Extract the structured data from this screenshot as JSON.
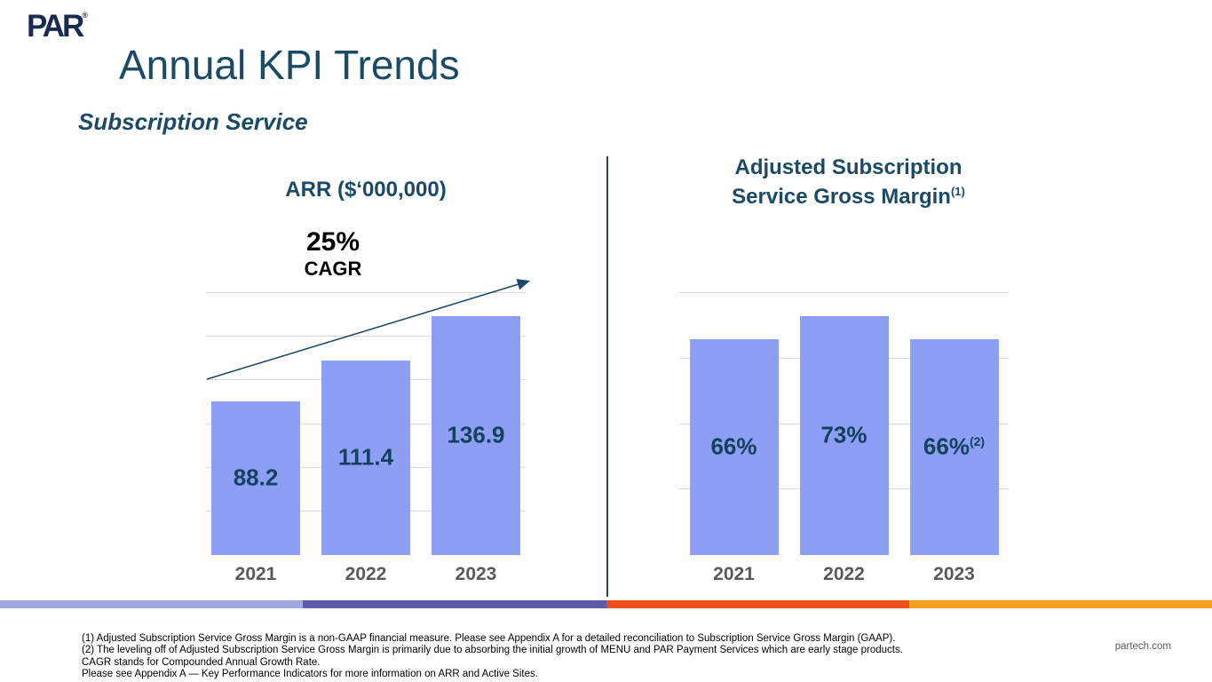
{
  "slide": {
    "logo_text": "PAR",
    "logo_trademark": "®",
    "title": "Annual KPI Trends",
    "subtitle": "Subscription Service",
    "footer_url": "partech.com",
    "footnotes": [
      "(1) Adjusted Subscription Service Gross Margin is a non-GAAP financial measure. Please see Appendix A for a detailed reconciliation to Subscription Service Gross Margin (GAAP).",
      "(2) The leveling off of Adjusted Subscription Service Gross Margin is primarily due to absorbing the initial growth of MENU and PAR Payment Services which are early stage products.",
      "CAGR stands for Compounded Annual Growth Rate.",
      "Please see Appendix A — Key Performance Indicators for more information on ARR and Active Sites."
    ]
  },
  "colors": {
    "bar": "#8D9FF5",
    "navy": "#1A4A66",
    "value_text": "#15405E",
    "axis_text": "#595959",
    "gridline": "#D9D9D9",
    "stripe": [
      "#9FA8E2",
      "#5C5AA8",
      "#E9501E",
      "#F5A01F"
    ]
  },
  "chart_data": [
    {
      "type": "bar",
      "title": "ARR ($‘000,000)",
      "annotation_value": "25%",
      "annotation_label": "CAGR",
      "categories": [
        "2021",
        "2022",
        "2023"
      ],
      "values": [
        88.2,
        111.4,
        136.9
      ],
      "value_labels": [
        "88.2",
        "111.4",
        "136.9"
      ],
      "value_sups": [
        "",
        "",
        ""
      ],
      "ylim": [
        0,
        150
      ],
      "grid_step": 25,
      "grid_on": true,
      "legend": "none",
      "trend_arrow": true
    },
    {
      "type": "bar",
      "title_line1": "Adjusted Subscription",
      "title_line2": "Service Gross Margin",
      "title_sup": "(1)",
      "categories": [
        "2021",
        "2022",
        "2023"
      ],
      "values": [
        66,
        73,
        66
      ],
      "value_labels": [
        "66%",
        "73%",
        "66%"
      ],
      "value_sups": [
        "",
        "",
        "(2)"
      ],
      "ylim": [
        0,
        80
      ],
      "grid_step": 20,
      "grid_on": true,
      "legend": "none",
      "trend_arrow": false
    }
  ]
}
